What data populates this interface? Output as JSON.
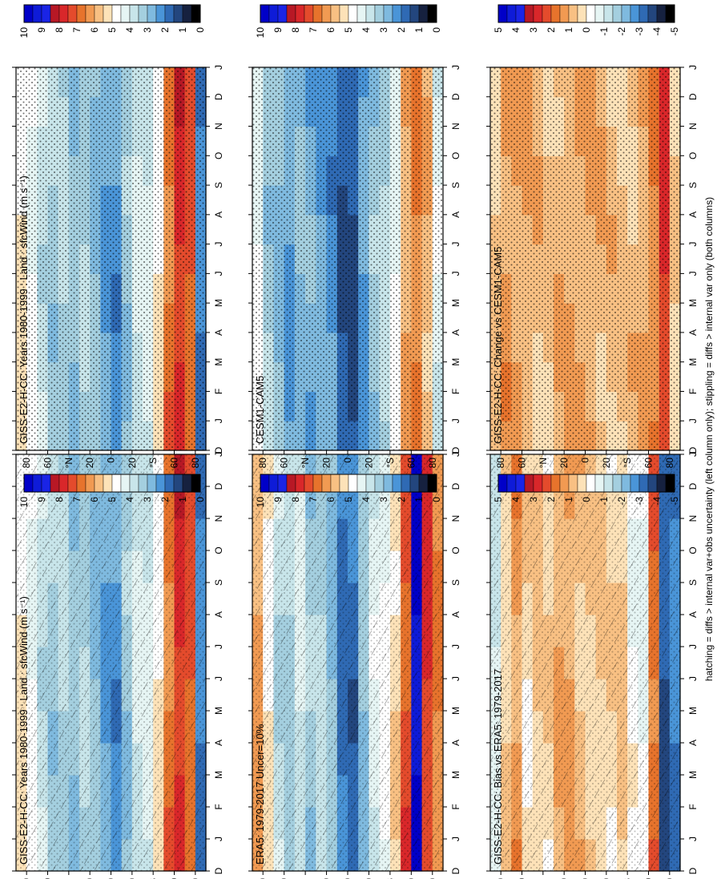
{
  "figure_note": "hatching = diffs > internal var+obs uncertainty (left column only); stippling = diffs > internal var only (both columns)",
  "chart_data": [
    {
      "type": "heatmap",
      "title": "GISS-E2-H-CC: Years 1980-1999 : Land : sfcWind (m s⁻¹)",
      "xlabel": "",
      "ylabel": "",
      "x_ticks": [
        "D",
        "J",
        "F",
        "M",
        "A",
        "M",
        "J",
        "J",
        "A",
        "S",
        "O",
        "N",
        "D",
        "J"
      ],
      "y_ticks": [
        "80",
        "60",
        "°N",
        "20",
        "0",
        "20",
        "°S",
        "60",
        "80"
      ],
      "colorbar_ticks": [
        "10",
        "9",
        "8",
        "7",
        "6",
        "5",
        "4",
        "3",
        "2",
        "1",
        "0"
      ],
      "colorbar_range": [
        0,
        10
      ],
      "pattern": "hatch",
      "values_by_latitude": [
        {
          "lat": 85,
          "value": 5.1
        },
        {
          "lat": 75,
          "value": 4.6
        },
        {
          "lat": 65,
          "value": 3.8
        },
        {
          "lat": 55,
          "value": 3.3
        },
        {
          "lat": 45,
          "value": 3.5
        },
        {
          "lat": 35,
          "value": 3.1
        },
        {
          "lat": 25,
          "value": 3.4
        },
        {
          "lat": 15,
          "value": 3.0
        },
        {
          "lat": 5,
          "value": 2.6
        },
        {
          "lat": -5,
          "value": 2.3
        },
        {
          "lat": -15,
          "value": 3.2
        },
        {
          "lat": -25,
          "value": 3.9
        },
        {
          "lat": -35,
          "value": 4.1
        },
        {
          "lat": -45,
          "value": 4.9
        },
        {
          "lat": -55,
          "value": 6.7
        },
        {
          "lat": -65,
          "value": 7.7
        },
        {
          "lat": -75,
          "value": 7.0
        },
        {
          "lat": -85,
          "value": 2.1
        }
      ]
    },
    {
      "type": "heatmap",
      "title": "ERA5: 1979-2017 Uncer=10%",
      "xlabel": "",
      "ylabel": "",
      "x_ticks": [
        "D",
        "J",
        "F",
        "M",
        "A",
        "M",
        "J",
        "J",
        "A",
        "S",
        "O",
        "N",
        "D",
        "J"
      ],
      "y_ticks": [
        "80",
        "60",
        "°N",
        "20",
        "0",
        "20",
        "°S",
        "60",
        "80"
      ],
      "colorbar_ticks": [
        "10",
        "9",
        "8",
        "7",
        "6",
        "5",
        "4",
        "3",
        "2",
        "1",
        "0"
      ],
      "colorbar_range": [
        0,
        10
      ],
      "pattern": "hatch",
      "values_by_latitude": [
        {
          "lat": 85,
          "value": 6.1
        },
        {
          "lat": 75,
          "value": 5.0
        },
        {
          "lat": 65,
          "value": 3.7
        },
        {
          "lat": 55,
          "value": 3.4
        },
        {
          "lat": 45,
          "value": 4.1
        },
        {
          "lat": 35,
          "value": 3.2
        },
        {
          "lat": 25,
          "value": 3.6
        },
        {
          "lat": 15,
          "value": 3.0
        },
        {
          "lat": 5,
          "value": 1.9
        },
        {
          "lat": -5,
          "value": 1.8
        },
        {
          "lat": -15,
          "value": 3.1
        },
        {
          "lat": -25,
          "value": 4.2
        },
        {
          "lat": -35,
          "value": 4.6
        },
        {
          "lat": -45,
          "value": 5.3
        },
        {
          "lat": -55,
          "value": 7.2
        },
        {
          "lat": -65,
          "value": 9.6
        },
        {
          "lat": -75,
          "value": 7.5
        },
        {
          "lat": -85,
          "value": 6.4
        }
      ]
    },
    {
      "type": "heatmap",
      "title": "GISS-E2-H-CC: Bias vs ERA5: 1979-2017",
      "xlabel": "",
      "ylabel": "",
      "x_ticks": [
        "D",
        "J",
        "F",
        "M",
        "A",
        "M",
        "J",
        "J",
        "A",
        "S",
        "O",
        "N",
        "D",
        "J"
      ],
      "y_ticks": [
        "80",
        "60",
        "°N",
        "20",
        "0",
        "20",
        "°S",
        "60",
        "80"
      ],
      "colorbar_ticks": [
        "5",
        "4",
        "3",
        "2",
        "1",
        "0",
        "-1",
        "-2",
        "-3",
        "-4",
        "-5"
      ],
      "colorbar_range": [
        -5,
        5
      ],
      "pattern": "hatch",
      "values_by_latitude": [
        {
          "lat": 85,
          "value": -1.0
        },
        {
          "lat": 75,
          "value": 0.4
        },
        {
          "lat": 65,
          "value": 1.2
        },
        {
          "lat": 55,
          "value": 0.2
        },
        {
          "lat": 45,
          "value": 0.6
        },
        {
          "lat": 35,
          "value": 0.3
        },
        {
          "lat": 25,
          "value": 0.9
        },
        {
          "lat": 15,
          "value": 1.1
        },
        {
          "lat": 5,
          "value": 0.7
        },
        {
          "lat": -5,
          "value": 0.5
        },
        {
          "lat": -15,
          "value": 0.4
        },
        {
          "lat": -25,
          "value": 0.3
        },
        {
          "lat": -35,
          "value": 0.6
        },
        {
          "lat": -45,
          "value": -0.3
        },
        {
          "lat": -55,
          "value": -0.5
        },
        {
          "lat": -65,
          "value": 1.8
        },
        {
          "lat": -75,
          "value": -3.5
        },
        {
          "lat": -85,
          "value": -3.0
        }
      ]
    },
    {
      "type": "heatmap",
      "title": "GISS-E2-H-CC: Years 1980-1999 : Land : sfcWind (m s⁻¹)",
      "xlabel": "",
      "ylabel": "",
      "x_ticks": [
        "D",
        "J",
        "F",
        "M",
        "A",
        "M",
        "J",
        "J",
        "A",
        "S",
        "O",
        "N",
        "D",
        "J"
      ],
      "y_ticks": [
        "80",
        "60",
        "°N",
        "20",
        "0",
        "20",
        "°S",
        "60",
        "80"
      ],
      "colorbar_ticks": [
        "10",
        "9",
        "8",
        "7",
        "6",
        "5",
        "4",
        "3",
        "2",
        "1",
        "0"
      ],
      "colorbar_range": [
        0,
        10
      ],
      "pattern": "stipple",
      "values_by_latitude": [
        {
          "lat": 85,
          "value": 5.1
        },
        {
          "lat": 75,
          "value": 4.6
        },
        {
          "lat": 65,
          "value": 3.8
        },
        {
          "lat": 55,
          "value": 3.3
        },
        {
          "lat": 45,
          "value": 3.5
        },
        {
          "lat": 35,
          "value": 3.1
        },
        {
          "lat": 25,
          "value": 3.4
        },
        {
          "lat": 15,
          "value": 3.0
        },
        {
          "lat": 5,
          "value": 2.6
        },
        {
          "lat": -5,
          "value": 2.3
        },
        {
          "lat": -15,
          "value": 3.2
        },
        {
          "lat": -25,
          "value": 3.9
        },
        {
          "lat": -35,
          "value": 4.1
        },
        {
          "lat": -45,
          "value": 4.9
        },
        {
          "lat": -55,
          "value": 6.7
        },
        {
          "lat": -65,
          "value": 7.7
        },
        {
          "lat": -75,
          "value": 7.0
        },
        {
          "lat": -85,
          "value": 2.1
        }
      ]
    },
    {
      "type": "heatmap",
      "title": "CESM1-CAM5",
      "xlabel": "",
      "ylabel": "",
      "x_ticks": [
        "D",
        "J",
        "F",
        "M",
        "A",
        "M",
        "J",
        "J",
        "A",
        "S",
        "O",
        "N",
        "D",
        "J"
      ],
      "y_ticks": [
        "80",
        "60",
        "°N",
        "20",
        "0",
        "20",
        "°S",
        "60",
        "80"
      ],
      "colorbar_ticks": [
        "10",
        "9",
        "8",
        "7",
        "6",
        "5",
        "4",
        "3",
        "2",
        "1",
        "0"
      ],
      "colorbar_range": [
        0,
        10
      ],
      "pattern": "stipple",
      "values_by_latitude": [
        {
          "lat": 85,
          "value": 4.5
        },
        {
          "lat": 75,
          "value": 3.3
        },
        {
          "lat": 65,
          "value": 3.0
        },
        {
          "lat": 55,
          "value": 2.5
        },
        {
          "lat": 45,
          "value": 2.9
        },
        {
          "lat": 35,
          "value": 2.7
        },
        {
          "lat": 25,
          "value": 2.6
        },
        {
          "lat": 15,
          "value": 2.3
        },
        {
          "lat": 5,
          "value": 1.6
        },
        {
          "lat": -5,
          "value": 1.5
        },
        {
          "lat": -15,
          "value": 2.4
        },
        {
          "lat": -25,
          "value": 3.2
        },
        {
          "lat": -35,
          "value": 3.6
        },
        {
          "lat": -45,
          "value": 4.4
        },
        {
          "lat": -55,
          "value": 6.0
        },
        {
          "lat": -65,
          "value": 6.6
        },
        {
          "lat": -75,
          "value": 5.8
        },
        {
          "lat": -85,
          "value": 4.2
        }
      ]
    },
    {
      "type": "heatmap",
      "title": "GISS-E2-H-CC: Change vs CESM1-CAM5",
      "xlabel": "",
      "ylabel": "",
      "x_ticks": [
        "D",
        "J",
        "F",
        "M",
        "A",
        "M",
        "J",
        "J",
        "A",
        "S",
        "O",
        "N",
        "D",
        "J"
      ],
      "y_ticks": [
        "80",
        "60",
        "°N",
        "20",
        "0",
        "20",
        "°S",
        "60",
        "80"
      ],
      "colorbar_ticks": [
        "5",
        "4",
        "3",
        "2",
        "1",
        "0",
        "-1",
        "-2",
        "-3",
        "-4",
        "-5"
      ],
      "colorbar_range": [
        -5,
        5
      ],
      "pattern": "stipple",
      "values_by_latitude": [
        {
          "lat": 85,
          "value": 0.6
        },
        {
          "lat": 75,
          "value": 1.2
        },
        {
          "lat": 65,
          "value": 1.0
        },
        {
          "lat": 55,
          "value": 0.9
        },
        {
          "lat": 45,
          "value": 0.7
        },
        {
          "lat": 35,
          "value": 0.5
        },
        {
          "lat": 25,
          "value": 0.8
        },
        {
          "lat": 15,
          "value": 0.9
        },
        {
          "lat": 5,
          "value": 1.0
        },
        {
          "lat": -5,
          "value": 0.9
        },
        {
          "lat": -15,
          "value": 0.8
        },
        {
          "lat": -25,
          "value": 0.7
        },
        {
          "lat": -35,
          "value": 0.6
        },
        {
          "lat": -45,
          "value": 0.7
        },
        {
          "lat": -55,
          "value": 1.0
        },
        {
          "lat": -65,
          "value": 1.4
        },
        {
          "lat": -75,
          "value": 2.6
        },
        {
          "lat": -85,
          "value": 0.4
        }
      ]
    }
  ],
  "colormaps": {
    "absolute": [
      "#000000",
      "#16213f",
      "#23467e",
      "#2f6ab4",
      "#4a95d8",
      "#7fbadf",
      "#a4cfdf",
      "#c8e5ea",
      "#e6f5f4",
      "#ffffff",
      "#fde2b8",
      "#f8c083",
      "#f19a52",
      "#e7732c",
      "#e44b2c",
      "#d9272a",
      "#b71825",
      "#1a24e6",
      "#0e1bd8",
      "#0000c8"
    ],
    "diverging": [
      "#000000",
      "#16213f",
      "#23467e",
      "#2f6ab4",
      "#4a95d8",
      "#7fbadf",
      "#a4cfdf",
      "#c8e5ea",
      "#e6f5f4",
      "#ffffff",
      "#fde2b8",
      "#f8c083",
      "#f19a52",
      "#e7732c",
      "#e44b2c",
      "#d9272a",
      "#b71825",
      "#1a24e6",
      "#0e1bd8",
      "#0000c8"
    ]
  }
}
